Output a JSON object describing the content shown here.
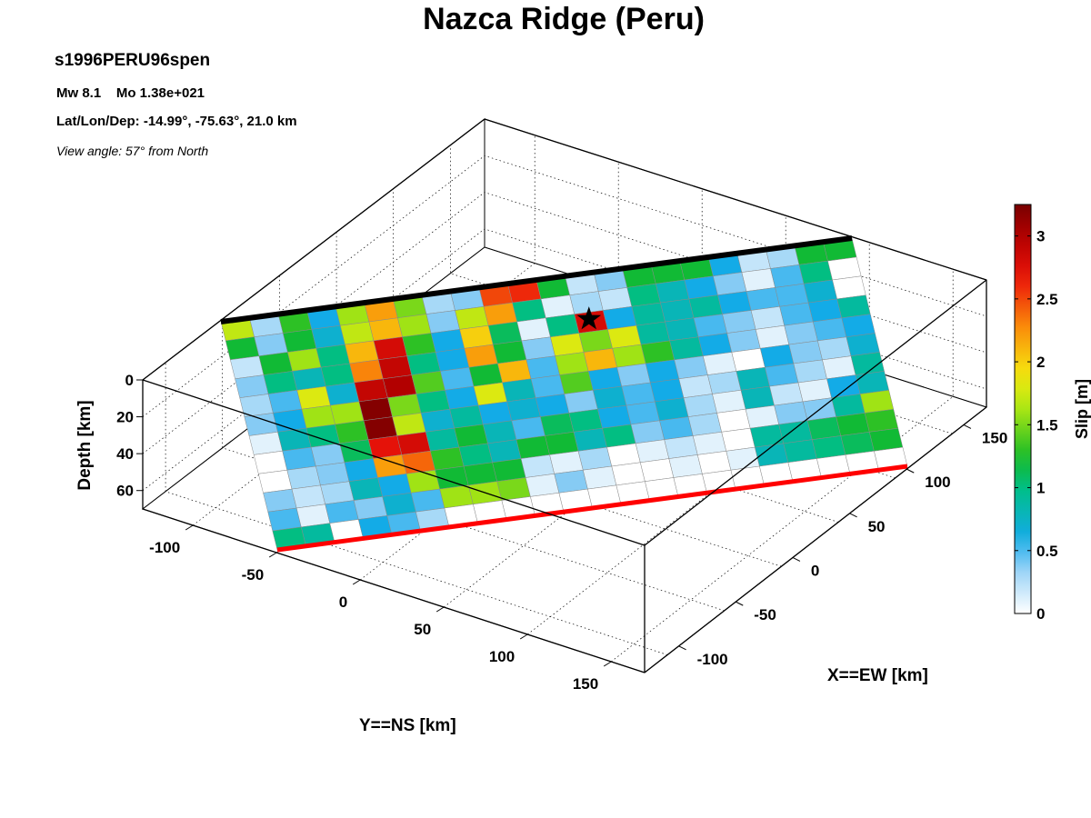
{
  "title": "Nazca Ridge (Peru)",
  "event_id": "s1996PERU96spen",
  "magnitude_line": "Mw 8.1    Mo 1.38e+021",
  "location_line": "Lat/Lon/Dep: -14.99°, -75.63°, 21.0 km",
  "view_line": "View angle:  57° from North",
  "colors": {
    "fault_top": "#000000",
    "fault_bottom": "#ff0000",
    "hypocenter": "#000000"
  },
  "chart_data": {
    "type": "heatmap",
    "projection": "3d-perspective",
    "xlabel": "X==EW [km]",
    "ylabel": "Y==NS [km]",
    "zlabel": "Depth [km]",
    "colorbar_label": "Slip [m]",
    "colormap": "white-blue-green-yellow-red-darkred",
    "xlim": [
      -130,
      170
    ],
    "ylim": [
      -130,
      170
    ],
    "zlim": [
      0,
      70
    ],
    "x_ticks": [
      "-100",
      "-50",
      "0",
      "50",
      "100",
      "150"
    ],
    "y_ticks": [
      "-100",
      "-50",
      "0",
      "50",
      "100",
      "150"
    ],
    "z_ticks": [
      "0",
      "20",
      "40",
      "60"
    ],
    "colorbar_ticks": [
      "0",
      "0.5",
      "1",
      "1.5",
      "2",
      "2.5",
      "3"
    ],
    "slip_range": [
      0,
      3.25
    ],
    "grid": true,
    "legend": "colorbar-right",
    "hypocenter_marker": "star",
    "hypocenter_cell": {
      "row": 2,
      "col": 12
    },
    "rows": 12,
    "cols": 22,
    "slip": [
      [
        1.7,
        0.3,
        1.3,
        0.6,
        1.6,
        2.2,
        1.5,
        0.3,
        0.4,
        2.5,
        2.6,
        1.2,
        0.2,
        0.4,
        1.2,
        1.2,
        1.2,
        0.6,
        0.2,
        0.3,
        1.2,
        1.2
      ],
      [
        1.2,
        0.4,
        1.2,
        0.7,
        1.7,
        2.1,
        1.6,
        0.4,
        1.7,
        2.2,
        1.0,
        0.1,
        0.3,
        0.2,
        1.0,
        0.8,
        0.6,
        0.4,
        0.1,
        0.5,
        1.0,
        0.0
      ],
      [
        0.2,
        1.2,
        1.6,
        1.0,
        2.1,
        2.8,
        1.3,
        0.6,
        2.0,
        1.1,
        0.1,
        1.0,
        2.8,
        0.6,
        0.9,
        0.8,
        0.9,
        0.6,
        0.5,
        0.5,
        0.7,
        0.0
      ],
      [
        0.4,
        1.0,
        0.8,
        1.0,
        2.3,
        2.9,
        1.0,
        0.6,
        2.2,
        1.2,
        0.4,
        1.8,
        1.5,
        1.8,
        0.9,
        0.8,
        0.5,
        0.4,
        0.2,
        0.5,
        0.6,
        0.9
      ],
      [
        0.3,
        0.5,
        1.8,
        0.7,
        2.9,
        3.0,
        1.4,
        0.5,
        1.2,
        2.1,
        0.5,
        1.6,
        2.1,
        1.6,
        1.3,
        0.9,
        0.6,
        0.4,
        0.1,
        0.4,
        0.5,
        0.6
      ],
      [
        0.4,
        0.6,
        1.6,
        1.6,
        3.2,
        1.5,
        1.0,
        0.6,
        1.8,
        0.8,
        0.5,
        1.4,
        0.6,
        0.4,
        0.6,
        0.4,
        0.1,
        0.0,
        0.6,
        0.4,
        0.3,
        0.7
      ],
      [
        0.1,
        0.8,
        1.0,
        1.3,
        3.2,
        1.7,
        0.7,
        0.9,
        0.6,
        0.7,
        0.6,
        0.4,
        0.7,
        0.5,
        0.6,
        0.2,
        0.3,
        0.8,
        0.5,
        0.3,
        0.1,
        0.9
      ],
      [
        0.0,
        0.5,
        0.4,
        1.1,
        2.7,
        2.8,
        0.9,
        1.2,
        0.8,
        0.5,
        1.1,
        1.0,
        0.6,
        0.5,
        0.7,
        0.3,
        0.1,
        0.8,
        0.2,
        0.1,
        0.6,
        0.8
      ],
      [
        0.0,
        0.3,
        0.4,
        0.6,
        2.2,
        2.4,
        1.3,
        1.0,
        0.8,
        1.2,
        1.2,
        0.8,
        1.0,
        0.4,
        0.5,
        0.3,
        0.0,
        0.1,
        0.4,
        0.4,
        0.9,
        1.6
      ],
      [
        0.4,
        0.2,
        0.3,
        0.8,
        0.6,
        1.6,
        1.2,
        1.2,
        1.2,
        0.2,
        0.1,
        0.3,
        0.0,
        0.1,
        0.2,
        0.1,
        0.0,
        0.9,
        0.9,
        1.1,
        1.2,
        1.3
      ],
      [
        0.5,
        0.1,
        0.5,
        0.4,
        0.7,
        0.5,
        1.6,
        1.6,
        1.5,
        0.1,
        0.4,
        0.1,
        0.0,
        0.0,
        0.1,
        0.0,
        0.1,
        0.8,
        0.9,
        1.0,
        1.1,
        1.2
      ],
      [
        1.0,
        0.9,
        0.0,
        0.6,
        0.5,
        0.3,
        0.0,
        0.0,
        0.0,
        0.0,
        0.0,
        0.0,
        0.0,
        0.0,
        0.0,
        0.0,
        0.0,
        0.0,
        0.0,
        0.0,
        0.0,
        0.0
      ]
    ]
  }
}
